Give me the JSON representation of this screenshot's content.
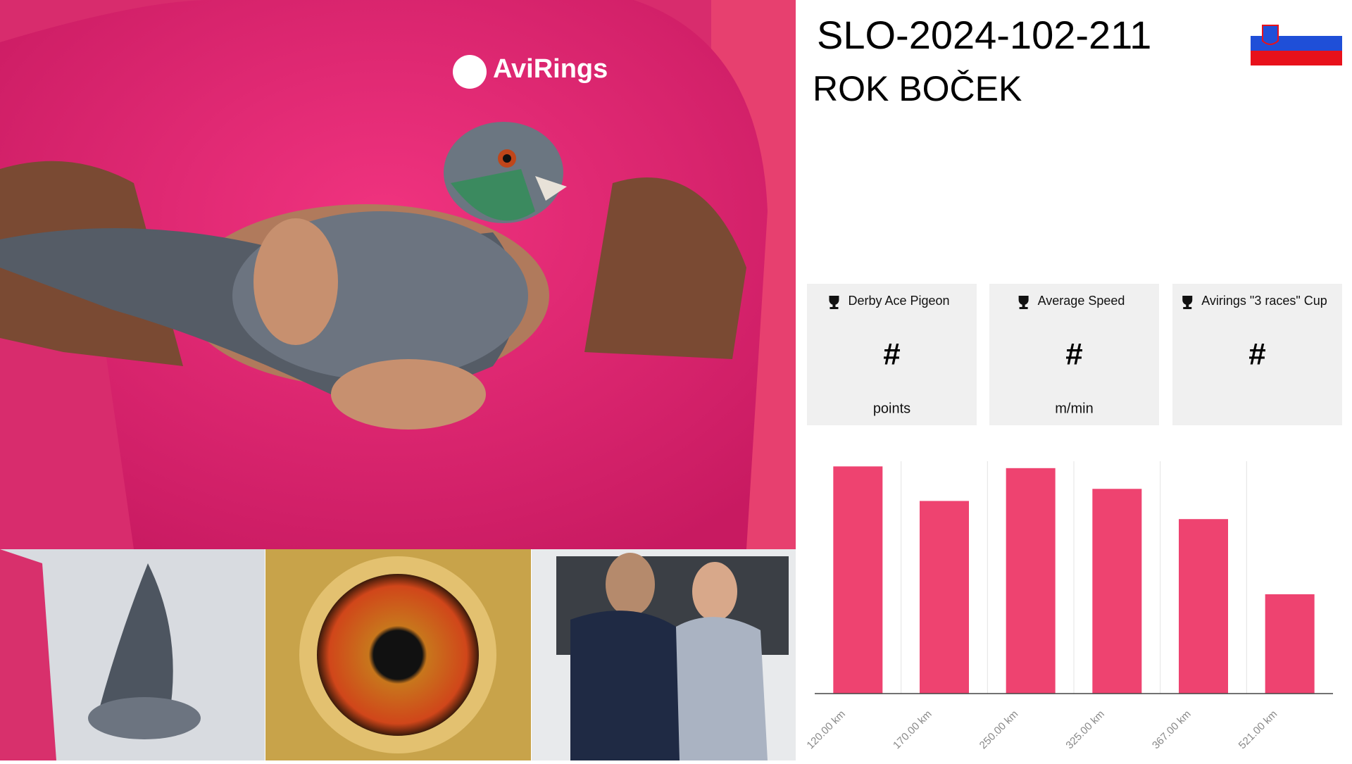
{
  "header": {
    "ring": "SLO-2024-102-211",
    "owner": "ROK  BOČEK"
  },
  "cards": [
    {
      "title": "Derby Ace Pigeon",
      "value": "#",
      "unit": "points"
    },
    {
      "title": "Average Speed",
      "value": "#",
      "unit": "m/min"
    },
    {
      "title": "Avirings \"3 races\" Cup",
      "value": "#",
      "unit": ""
    }
  ],
  "photo_text": "AviRings",
  "chart_data": {
    "type": "bar",
    "categories": [
      "120.00 km",
      "170.00 km",
      "250.00 km",
      "325.00 km",
      "367.00 km",
      "521.00 km"
    ],
    "values": [
      263,
      223,
      261,
      237,
      202,
      115
    ],
    "color": "#ee4370",
    "ylim": [
      0,
      269
    ]
  }
}
